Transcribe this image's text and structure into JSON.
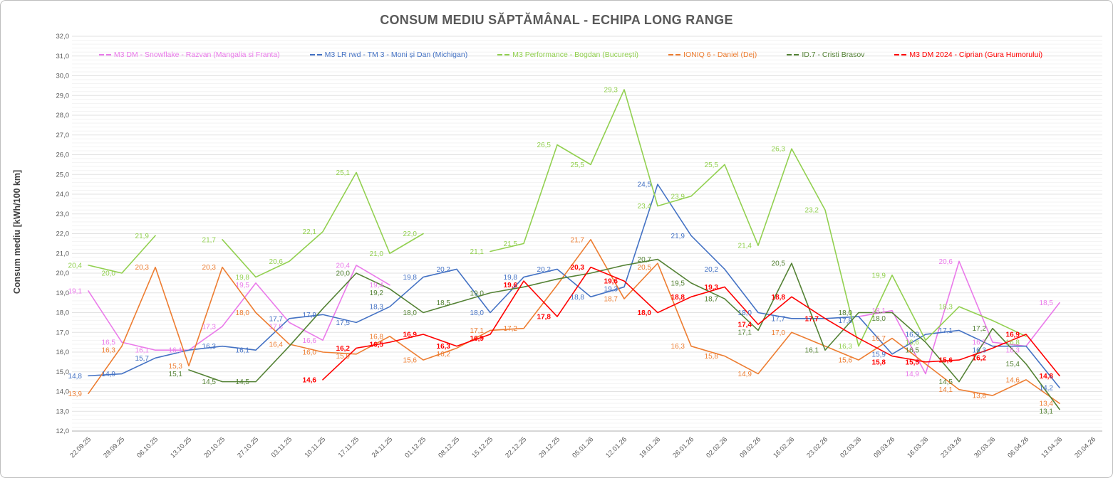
{
  "chart_data": {
    "type": "line",
    "title": "CONSUM MEDIU SĂPTĂMÂNAL - ECHIPA LONG RANGE",
    "y_axis": {
      "title": "Consum mediu [kWh/100 km]",
      "min": 12,
      "max": 32,
      "major_step": 1,
      "minor_step": 0.2,
      "tick_labels": [
        "32,0",
        "31,0",
        "30,0",
        "29,0",
        "28,0",
        "27,0",
        "26,0",
        "25,0",
        "24,0",
        "23,0",
        "22,0",
        "21,0",
        "20,0",
        "19,0",
        "18,0",
        "17,0",
        "16,0",
        "15,0",
        "14,0",
        "13,0",
        "12,0"
      ]
    },
    "x_axis": {
      "labels": [
        "22.09.25",
        "29.09.25",
        "06.10.25",
        "13.10.25",
        "20.10.25",
        "27.10.25",
        "03.11.25",
        "10.11.25",
        "17.11.25",
        "24.11.25",
        "01.12.25",
        "08.12.25",
        "15.12.25",
        "22.12.25",
        "29.12.25",
        "05.01.26",
        "12.01.26",
        "19.01.26",
        "26.01.26",
        "02.02.26",
        "09.02.26",
        "16.02.26",
        "23.02.26",
        "02.03.26",
        "09.03.26",
        "16.03.26",
        "23.03.26",
        "30.03.26",
        "06.04.26",
        "13.04.26",
        "20.04.26"
      ]
    },
    "legend_position": "top",
    "grid": true,
    "colors": {
      "title_gray": "#595959",
      "axis_text": "#595959",
      "major_grid": "#e2e2e2",
      "minor_grid": "#f3f3f3",
      "axis_line": "#bfbfbf"
    },
    "series": [
      {
        "name": "M3 DM - Snowflake - Razvan (Mangalia si Franta)",
        "color": "#ea7aea",
        "bold_labels": false,
        "values": [
          19.1,
          16.5,
          16.1,
          16.1,
          17.3,
          19.5,
          17.5,
          16.6,
          20.4,
          19.4,
          null,
          null,
          null,
          null,
          null,
          null,
          null,
          null,
          null,
          null,
          null,
          null,
          null,
          17.8,
          18.1,
          14.9,
          20.6,
          16.5,
          16.3,
          18.5,
          null
        ],
        "labels": [
          "19,1",
          "16,5",
          "16,1",
          "16,1",
          "17,3",
          "19,5",
          "17,5",
          "16,6",
          "20,4",
          "19,4",
          null,
          null,
          null,
          null,
          null,
          null,
          null,
          null,
          null,
          null,
          null,
          null,
          null,
          null,
          "18,1",
          "14,9",
          "20,6",
          "16,5",
          "16,3",
          "18,5",
          null
        ]
      },
      {
        "name": "M3 LR rwd - TM 3 - Moni și Dan (Michigan)",
        "color": "#4472c4",
        "bold_labels": false,
        "values": [
          14.8,
          14.9,
          15.7,
          16.1,
          16.3,
          16.1,
          17.7,
          17.9,
          17.5,
          18.3,
          19.8,
          20.2,
          18.0,
          19.8,
          20.2,
          18.8,
          19.3,
          24.5,
          21.9,
          20.2,
          18.0,
          17.7,
          17.7,
          17.8,
          15.9,
          16.9,
          17.1,
          16.3,
          16.3,
          14.2,
          null
        ],
        "labels": [
          "14,8",
          "14,9",
          "15,7",
          null,
          "16,3",
          "16,1",
          "17,7",
          "17,9",
          "17,5",
          "18,3",
          "19,8",
          "20,2",
          "18,0",
          "19,8",
          "20,2",
          "18,8",
          "19,3",
          "24,5",
          "21,9",
          "20,2",
          "18,0",
          "17,7",
          null,
          "17,8",
          "15,9",
          "16,9",
          "17,1",
          "16,3",
          null,
          "14,2",
          null
        ]
      },
      {
        "name": "M3 Performance - Bogdan (București)",
        "color": "#92d050",
        "bold_labels": false,
        "values": [
          20.4,
          20.0,
          21.9,
          null,
          21.7,
          19.8,
          20.6,
          22.1,
          25.1,
          21.0,
          22.0,
          null,
          21.1,
          21.5,
          26.5,
          25.5,
          29.3,
          23.4,
          23.9,
          25.5,
          21.4,
          26.3,
          23.2,
          16.3,
          19.9,
          16.6,
          18.3,
          17.6,
          16.8,
          null,
          null
        ],
        "labels": [
          "20,4",
          "20,0",
          "21,9",
          null,
          "21,7",
          "19,8",
          "20,6",
          "22,1",
          "25,1",
          "21,0",
          "22,0",
          null,
          "21,1",
          "21,5",
          "26,5",
          "25,5",
          "29,3",
          "23,4",
          "23,9",
          "25,5",
          "21,4",
          "26,3",
          "23,2",
          "16,3",
          "19,9",
          "16,6",
          "18,3",
          null,
          "16,8",
          null,
          null
        ]
      },
      {
        "name": "IONIQ 6 - Daniel (Dej)",
        "color": "#ed7d31",
        "bold_labels": false,
        "values": [
          13.9,
          16.3,
          20.3,
          15.3,
          20.3,
          18.0,
          16.4,
          16.0,
          15.9,
          16.8,
          15.6,
          16.2,
          17.1,
          17.2,
          19.4,
          21.7,
          18.7,
          20.5,
          16.3,
          15.8,
          14.9,
          17.0,
          16.3,
          15.6,
          16.7,
          15.4,
          14.1,
          13.8,
          14.6,
          13.4,
          null
        ],
        "labels": [
          "13,9",
          "16,3",
          "20,3",
          "15,3",
          "20,3",
          "18,0",
          "16,4",
          "16,0",
          "15,9",
          "16,8",
          "15,6",
          "16,2",
          "17,1",
          "17,2",
          null,
          "21,7",
          "18,7",
          "20,5",
          "16,3",
          "15,8",
          "14,9",
          "17,0",
          null,
          "15,6",
          "16,7",
          null,
          "14,1",
          "13,8",
          "14,6",
          "13,4",
          null
        ]
      },
      {
        "name": "ID.7 - Cristi Brasov",
        "color": "#548235",
        "bold_labels": false,
        "values": [
          null,
          null,
          null,
          15.1,
          14.5,
          14.5,
          16.3,
          18.2,
          20.0,
          19.2,
          18.0,
          18.5,
          19.0,
          19.3,
          19.7,
          20.0,
          20.4,
          20.7,
          19.5,
          18.7,
          17.1,
          20.5,
          16.1,
          18.0,
          18.0,
          16.5,
          14.5,
          17.2,
          15.4,
          13.1,
          null
        ],
        "labels": [
          null,
          null,
          null,
          "15,1",
          "14,5",
          "14,5",
          null,
          null,
          "20,0",
          "19,2",
          "18,0",
          "18,5",
          "19,0",
          null,
          null,
          null,
          null,
          "20,7",
          "19,5",
          "18,7",
          "17,1",
          "20,5",
          "16,1",
          "18,0",
          "18,0",
          "16,5",
          "14,5",
          "17,2",
          "15,4",
          "13,1",
          null
        ]
      },
      {
        "name": "M3 DM 2024 - Ciprian (Gura Humorului)",
        "color": "#ff0000",
        "bold_labels": true,
        "values": [
          null,
          null,
          null,
          null,
          null,
          null,
          null,
          14.6,
          16.2,
          16.5,
          16.9,
          16.3,
          16.9,
          19.6,
          17.8,
          20.3,
          19.6,
          18.0,
          18.8,
          19.3,
          17.4,
          18.8,
          17.7,
          16.7,
          15.8,
          15.5,
          15.6,
          16.2,
          16.9,
          14.8,
          null
        ],
        "labels": [
          null,
          null,
          null,
          null,
          null,
          null,
          null,
          "14,6",
          "16,2",
          "16,5",
          "16,9",
          "16,3",
          "16,9",
          "19,6",
          "17,8",
          "20,3",
          "19,6",
          "18,0",
          "18,8",
          "19,3",
          "17,4",
          "18,8",
          "17,7",
          null,
          "15,8",
          "15,5",
          "15,6",
          "16,2",
          "16,9",
          "14,8",
          null
        ]
      }
    ]
  }
}
